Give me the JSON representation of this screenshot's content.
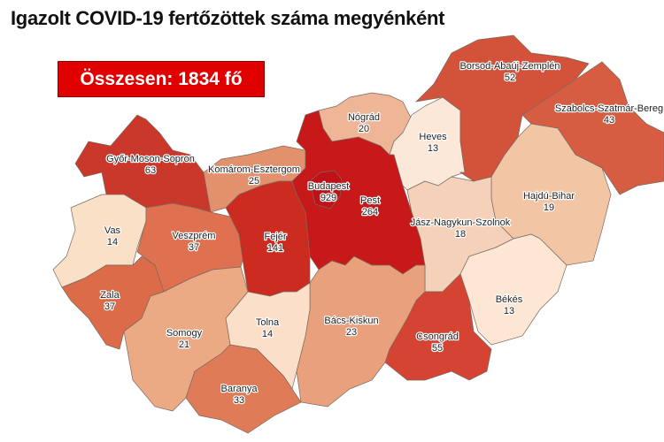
{
  "title": "Igazolt COVID-19 fertőzöttek száma megyénként",
  "total_label": "Összesen: 1834 fő",
  "counties": [
    {
      "name": "Győr-Moson-Sopron",
      "value": "63",
      "color": "#c9382b"
    },
    {
      "name": "Vas",
      "value": "14",
      "color": "#fbe0c8"
    },
    {
      "name": "Veszprém",
      "value": "37",
      "color": "#df7050"
    },
    {
      "name": "Zala",
      "value": "37",
      "color": "#dc6b4a"
    },
    {
      "name": "Komárom-Esztergom",
      "value": "25",
      "color": "#e3906c"
    },
    {
      "name": "Fejér",
      "value": "141",
      "color": "#cc2b20"
    },
    {
      "name": "Pest",
      "value": "264",
      "color": "#c8191a"
    },
    {
      "name": "Budapest",
      "value": "929",
      "color": "#be1218"
    },
    {
      "name": "Nógrád",
      "value": "20",
      "color": "#eeb597"
    },
    {
      "name": "Heves",
      "value": "13",
      "color": "#fce8d8"
    },
    {
      "name": "Borsod-Abaúj-Zemplén",
      "value": "52",
      "color": "#d2523a"
    },
    {
      "name": "Szabolcs-Szatmár-Bereg",
      "value": "43",
      "color": "#d65c42"
    },
    {
      "name": "Hajdú-Bihar",
      "value": "19",
      "color": "#f2c5a5"
    },
    {
      "name": "Jász-Nagykun-Szolnok",
      "value": "18",
      "color": "#f4d1b8"
    },
    {
      "name": "Békés",
      "value": "13",
      "color": "#fde6d3"
    },
    {
      "name": "Csongrád",
      "value": "55",
      "color": "#d54433"
    },
    {
      "name": "Bács-Kiskun",
      "value": "23",
      "color": "#e9a07c"
    },
    {
      "name": "Tolna",
      "value": "14",
      "color": "#fbdfc8"
    },
    {
      "name": "Somogy",
      "value": "21",
      "color": "#eba984"
    },
    {
      "name": "Baranya",
      "value": "33",
      "color": "#e07b58"
    }
  ]
}
